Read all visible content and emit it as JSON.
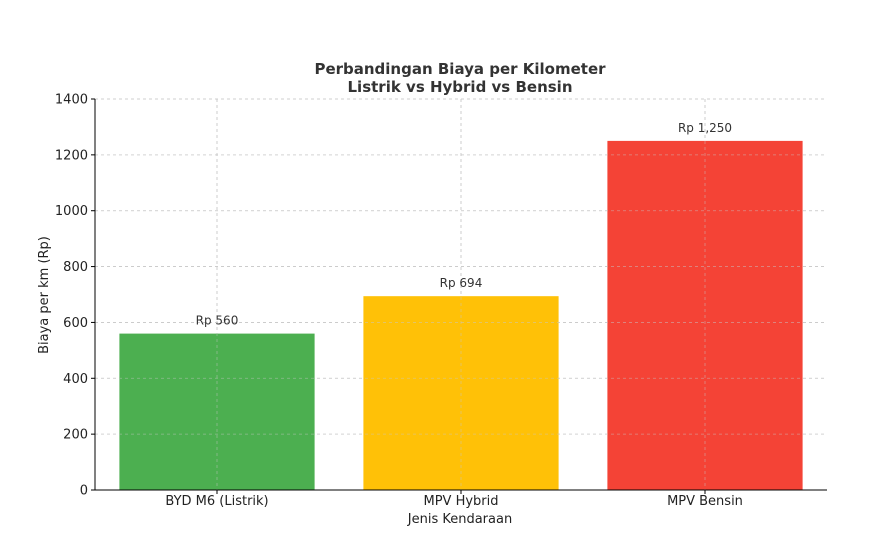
{
  "chart_data": {
    "type": "bar",
    "title_lines": [
      "Perbandingan Biaya per Kilometer",
      "Listrik vs Hybrid vs Bensin"
    ],
    "xlabel": "Jenis Kendaraan",
    "ylabel": "Biaya per km (Rp)",
    "categories": [
      "BYD M6 (Listrik)",
      "MPV Hybrid",
      "MPV Bensin"
    ],
    "values": [
      560,
      694,
      1250
    ],
    "data_labels": [
      "Rp 560",
      "Rp 694",
      "Rp 1,250"
    ],
    "colors": [
      "#4caf50",
      "#ffc107",
      "#f44336"
    ],
    "ylim": [
      0,
      1400
    ],
    "yticks": [
      0,
      200,
      400,
      600,
      800,
      1000,
      1200,
      1400
    ],
    "grid": true
  }
}
